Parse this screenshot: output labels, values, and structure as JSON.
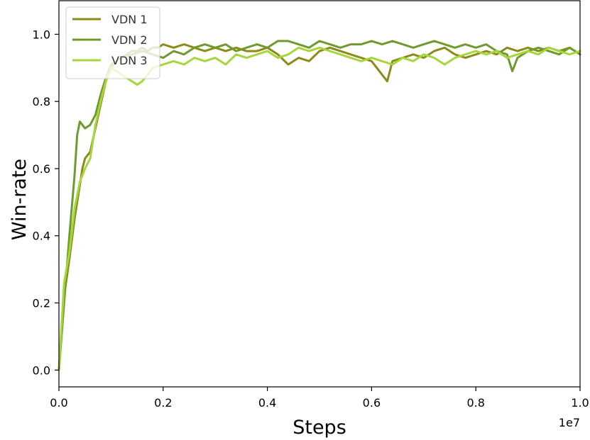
{
  "chart_data": {
    "type": "line",
    "xlabel": "Steps",
    "ylabel": "Win-rate",
    "x_offset_label": "1e7",
    "xlim": [
      0.0,
      1.0
    ],
    "ylim": [
      -0.05,
      1.1
    ],
    "x_ticks": [
      0.0,
      0.2,
      0.4,
      0.6,
      0.8,
      1.0
    ],
    "x_tick_labels": [
      "0.0",
      "0.2",
      "0.4",
      "0.6",
      "0.8",
      "1.0"
    ],
    "y_ticks": [
      0.0,
      0.2,
      0.4,
      0.6,
      0.8,
      1.0
    ],
    "y_tick_labels": [
      "0.0",
      "0.2",
      "0.4",
      "0.6",
      "0.8",
      "1.0"
    ],
    "grid": false,
    "legend_position": "top-left",
    "series": [
      {
        "name": "VDN 1",
        "color": "#8b8b1a",
        "points": [
          [
            0.0,
            0.0
          ],
          [
            0.01,
            0.22
          ],
          [
            0.02,
            0.33
          ],
          [
            0.03,
            0.45
          ],
          [
            0.04,
            0.55
          ],
          [
            0.045,
            0.6
          ],
          [
            0.05,
            0.63
          ],
          [
            0.06,
            0.65
          ],
          [
            0.07,
            0.72
          ],
          [
            0.08,
            0.79
          ],
          [
            0.09,
            0.86
          ],
          [
            0.1,
            0.9
          ],
          [
            0.11,
            0.92
          ],
          [
            0.12,
            0.93
          ],
          [
            0.13,
            0.94
          ],
          [
            0.14,
            0.95
          ],
          [
            0.15,
            0.95
          ],
          [
            0.16,
            0.96
          ],
          [
            0.17,
            0.95
          ],
          [
            0.18,
            0.96
          ],
          [
            0.19,
            0.96
          ],
          [
            0.2,
            0.97
          ],
          [
            0.22,
            0.96
          ],
          [
            0.24,
            0.97
          ],
          [
            0.26,
            0.96
          ],
          [
            0.28,
            0.95
          ],
          [
            0.3,
            0.96
          ],
          [
            0.32,
            0.95
          ],
          [
            0.34,
            0.96
          ],
          [
            0.36,
            0.95
          ],
          [
            0.38,
            0.95
          ],
          [
            0.4,
            0.96
          ],
          [
            0.42,
            0.94
          ],
          [
            0.44,
            0.91
          ],
          [
            0.46,
            0.93
          ],
          [
            0.48,
            0.92
          ],
          [
            0.5,
            0.95
          ],
          [
            0.52,
            0.96
          ],
          [
            0.54,
            0.95
          ],
          [
            0.56,
            0.94
          ],
          [
            0.58,
            0.93
          ],
          [
            0.6,
            0.92
          ],
          [
            0.62,
            0.88
          ],
          [
            0.63,
            0.86
          ],
          [
            0.64,
            0.92
          ],
          [
            0.66,
            0.93
          ],
          [
            0.68,
            0.94
          ],
          [
            0.7,
            0.93
          ],
          [
            0.72,
            0.95
          ],
          [
            0.74,
            0.96
          ],
          [
            0.76,
            0.94
          ],
          [
            0.78,
            0.93
          ],
          [
            0.8,
            0.94
          ],
          [
            0.82,
            0.95
          ],
          [
            0.84,
            0.94
          ],
          [
            0.86,
            0.96
          ],
          [
            0.88,
            0.95
          ],
          [
            0.9,
            0.96
          ],
          [
            0.92,
            0.95
          ],
          [
            0.94,
            0.96
          ],
          [
            0.96,
            0.95
          ],
          [
            0.98,
            0.96
          ],
          [
            1.0,
            0.94
          ]
        ]
      },
      {
        "name": "VDN 2",
        "color": "#6e9a2e",
        "points": [
          [
            0.0,
            0.0
          ],
          [
            0.01,
            0.2
          ],
          [
            0.02,
            0.4
          ],
          [
            0.03,
            0.58
          ],
          [
            0.035,
            0.7
          ],
          [
            0.04,
            0.74
          ],
          [
            0.05,
            0.72
          ],
          [
            0.06,
            0.73
          ],
          [
            0.07,
            0.76
          ],
          [
            0.08,
            0.82
          ],
          [
            0.09,
            0.87
          ],
          [
            0.1,
            0.91
          ],
          [
            0.12,
            0.93
          ],
          [
            0.14,
            0.94
          ],
          [
            0.16,
            0.95
          ],
          [
            0.18,
            0.94
          ],
          [
            0.2,
            0.93
          ],
          [
            0.22,
            0.95
          ],
          [
            0.24,
            0.94
          ],
          [
            0.26,
            0.96
          ],
          [
            0.28,
            0.97
          ],
          [
            0.3,
            0.96
          ],
          [
            0.32,
            0.97
          ],
          [
            0.34,
            0.95
          ],
          [
            0.36,
            0.96
          ],
          [
            0.38,
            0.97
          ],
          [
            0.4,
            0.96
          ],
          [
            0.42,
            0.98
          ],
          [
            0.44,
            0.98
          ],
          [
            0.46,
            0.97
          ],
          [
            0.48,
            0.96
          ],
          [
            0.5,
            0.98
          ],
          [
            0.52,
            0.97
          ],
          [
            0.54,
            0.96
          ],
          [
            0.56,
            0.97
          ],
          [
            0.58,
            0.97
          ],
          [
            0.6,
            0.98
          ],
          [
            0.62,
            0.97
          ],
          [
            0.64,
            0.98
          ],
          [
            0.66,
            0.97
          ],
          [
            0.68,
            0.96
          ],
          [
            0.7,
            0.97
          ],
          [
            0.72,
            0.98
          ],
          [
            0.74,
            0.97
          ],
          [
            0.76,
            0.96
          ],
          [
            0.78,
            0.97
          ],
          [
            0.8,
            0.96
          ],
          [
            0.82,
            0.97
          ],
          [
            0.84,
            0.95
          ],
          [
            0.86,
            0.94
          ],
          [
            0.87,
            0.89
          ],
          [
            0.88,
            0.93
          ],
          [
            0.9,
            0.95
          ],
          [
            0.92,
            0.96
          ],
          [
            0.94,
            0.95
          ],
          [
            0.96,
            0.94
          ],
          [
            0.98,
            0.96
          ],
          [
            1.0,
            0.94
          ]
        ]
      },
      {
        "name": "VDN 3",
        "color": "#a5d63c",
        "points": [
          [
            0.0,
            0.0
          ],
          [
            0.01,
            0.26
          ],
          [
            0.02,
            0.35
          ],
          [
            0.03,
            0.48
          ],
          [
            0.04,
            0.56
          ],
          [
            0.05,
            0.6
          ],
          [
            0.06,
            0.63
          ],
          [
            0.07,
            0.73
          ],
          [
            0.08,
            0.8
          ],
          [
            0.09,
            0.86
          ],
          [
            0.1,
            0.9
          ],
          [
            0.11,
            0.89
          ],
          [
            0.12,
            0.88
          ],
          [
            0.13,
            0.87
          ],
          [
            0.14,
            0.86
          ],
          [
            0.15,
            0.85
          ],
          [
            0.16,
            0.86
          ],
          [
            0.17,
            0.88
          ],
          [
            0.18,
            0.9
          ],
          [
            0.2,
            0.91
          ],
          [
            0.22,
            0.92
          ],
          [
            0.24,
            0.91
          ],
          [
            0.26,
            0.93
          ],
          [
            0.28,
            0.92
          ],
          [
            0.3,
            0.93
          ],
          [
            0.32,
            0.91
          ],
          [
            0.34,
            0.94
          ],
          [
            0.36,
            0.93
          ],
          [
            0.38,
            0.94
          ],
          [
            0.4,
            0.95
          ],
          [
            0.42,
            0.93
          ],
          [
            0.44,
            0.94
          ],
          [
            0.46,
            0.96
          ],
          [
            0.48,
            0.95
          ],
          [
            0.5,
            0.96
          ],
          [
            0.52,
            0.95
          ],
          [
            0.54,
            0.94
          ],
          [
            0.56,
            0.93
          ],
          [
            0.58,
            0.92
          ],
          [
            0.6,
            0.93
          ],
          [
            0.62,
            0.92
          ],
          [
            0.64,
            0.91
          ],
          [
            0.66,
            0.93
          ],
          [
            0.68,
            0.92
          ],
          [
            0.7,
            0.94
          ],
          [
            0.72,
            0.93
          ],
          [
            0.74,
            0.91
          ],
          [
            0.76,
            0.93
          ],
          [
            0.78,
            0.94
          ],
          [
            0.8,
            0.95
          ],
          [
            0.82,
            0.94
          ],
          [
            0.84,
            0.95
          ],
          [
            0.86,
            0.93
          ],
          [
            0.88,
            0.94
          ],
          [
            0.9,
            0.95
          ],
          [
            0.92,
            0.94
          ],
          [
            0.94,
            0.96
          ],
          [
            0.96,
            0.95
          ],
          [
            0.98,
            0.94
          ],
          [
            1.0,
            0.95
          ]
        ]
      }
    ]
  }
}
